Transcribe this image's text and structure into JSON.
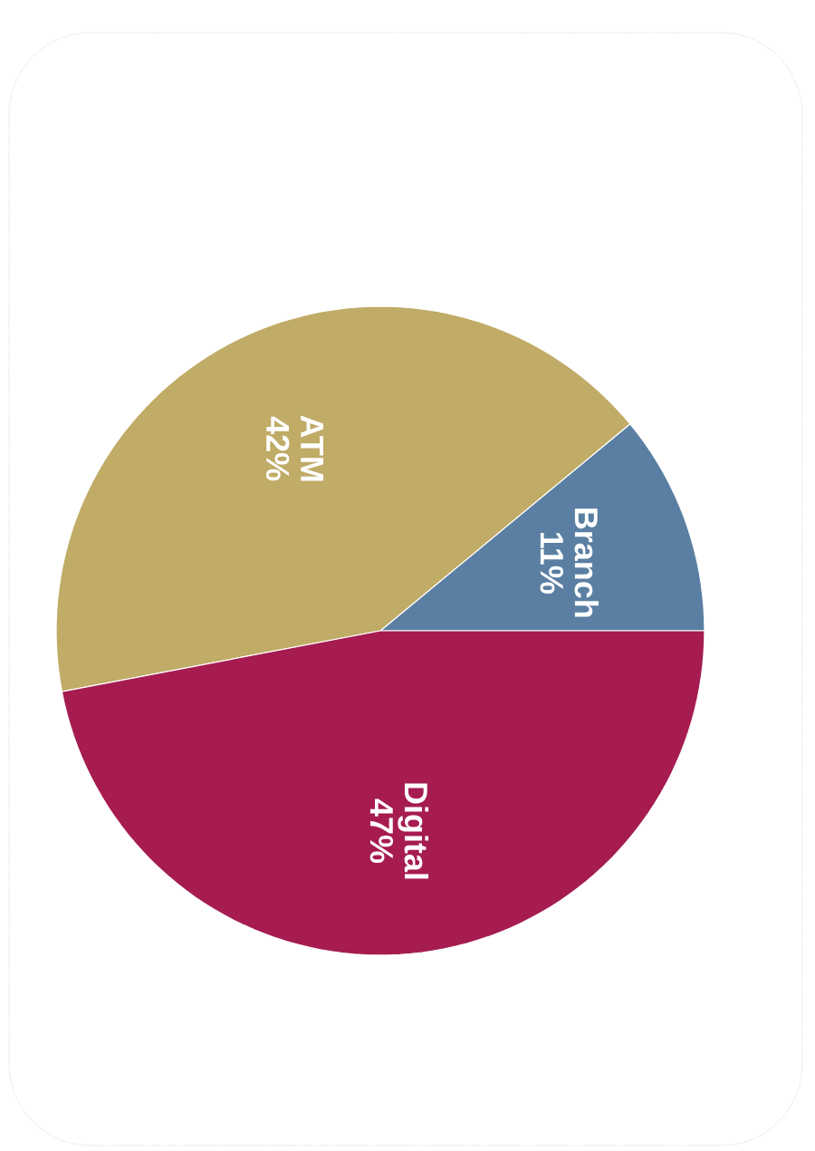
{
  "chart_data": {
    "type": "pie",
    "categories": [
      "Branch",
      "ATM",
      "Digital"
    ],
    "values": [
      11,
      42,
      47
    ],
    "value_labels": [
      "11%",
      "42%",
      "47%"
    ],
    "colors": [
      "#5a7fa2",
      "#c0ab67",
      "#a61c50"
    ]
  }
}
